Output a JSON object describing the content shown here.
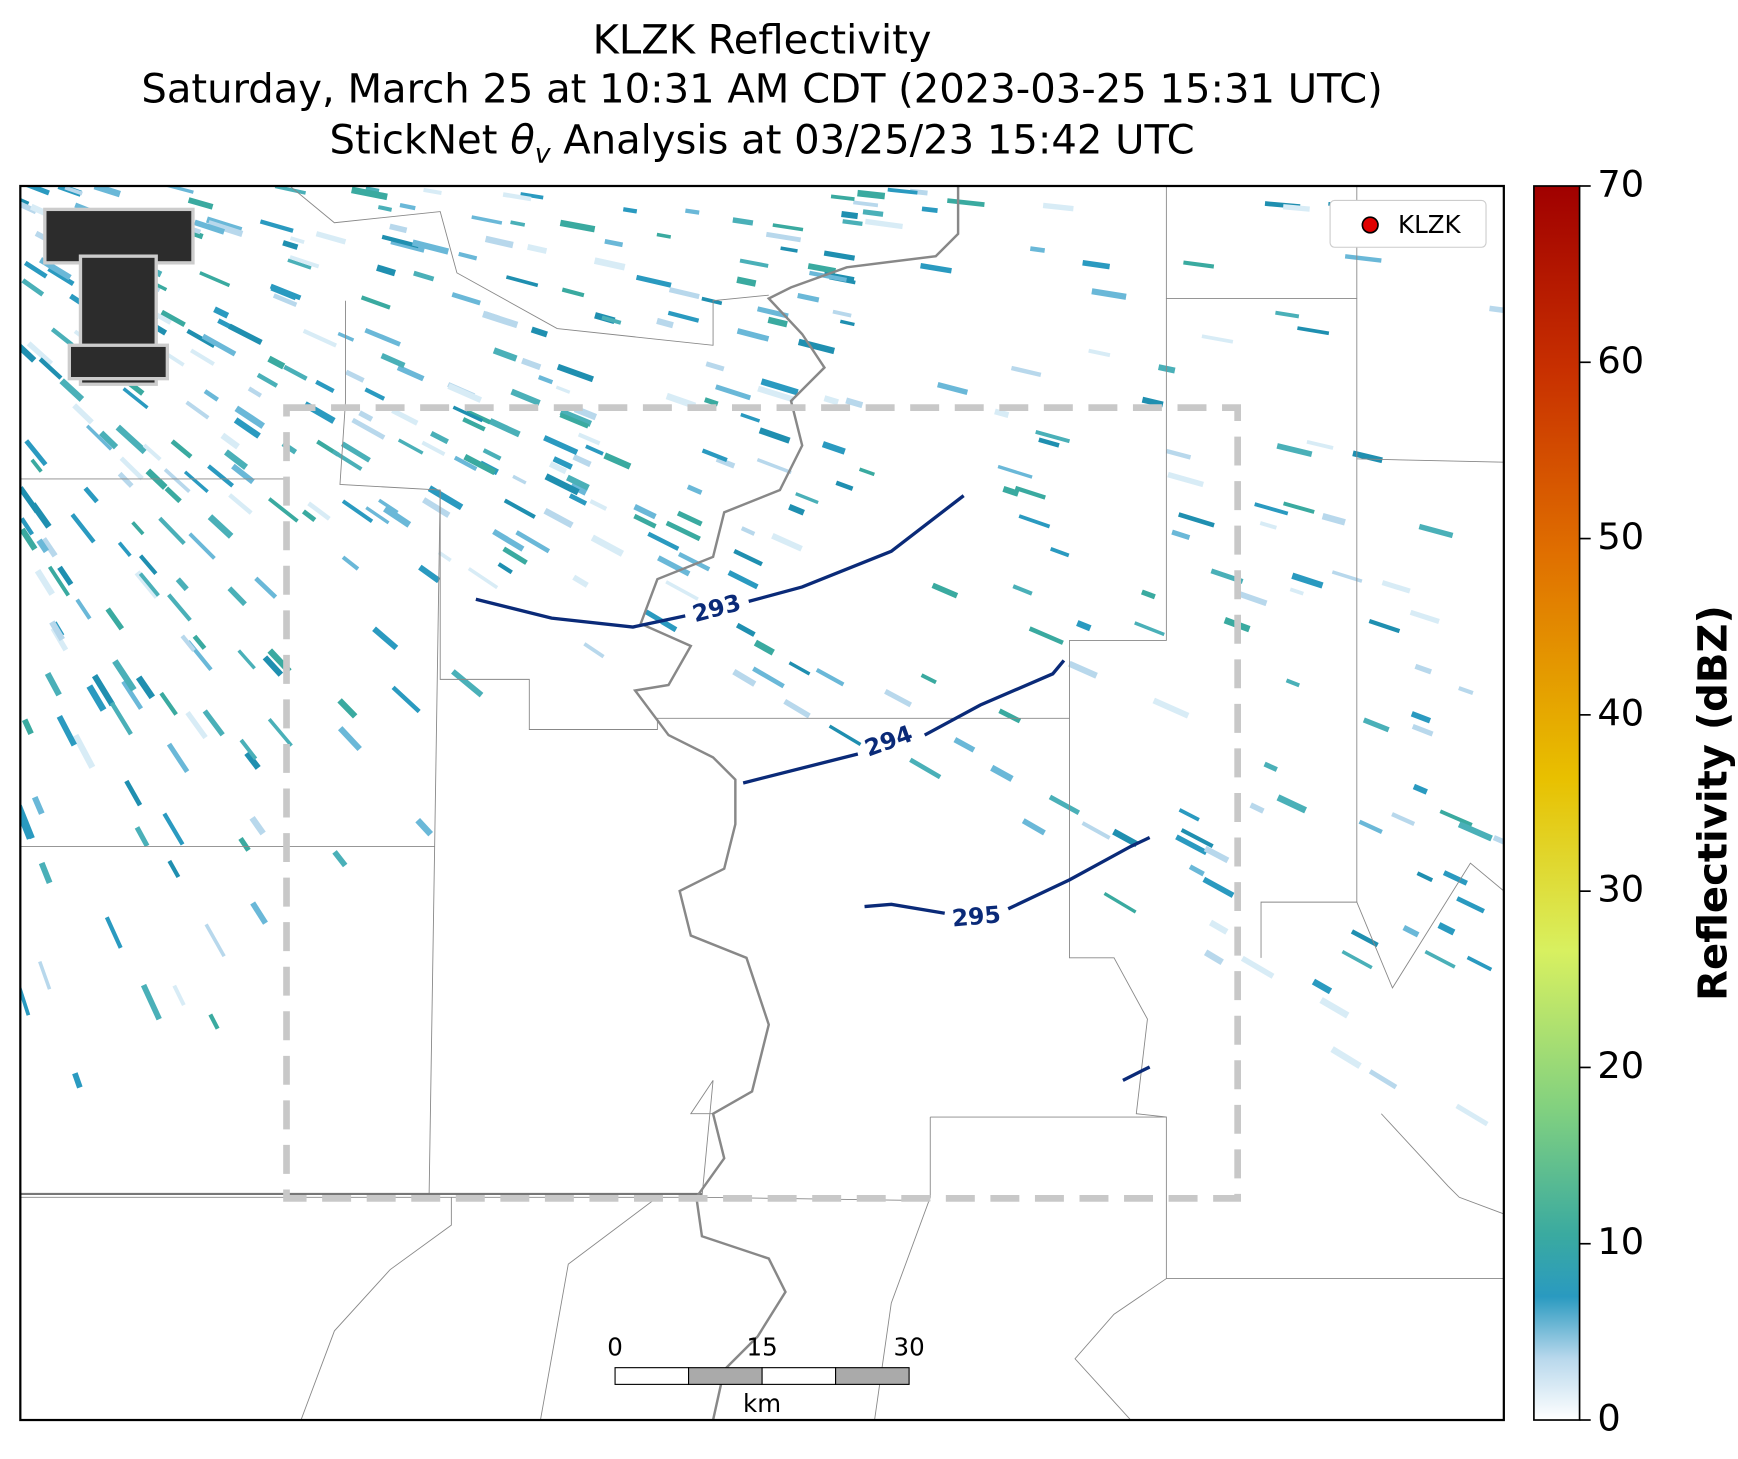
{
  "header": {
    "title": "KLZK Reflectivity",
    "subtitle": "Saturday, March 25 at 10:31 AM CDT (2023-03-25 15:31 UTC)",
    "analysis": {
      "prefix": "StickNet ",
      "symbol": "θ",
      "subscript": "v",
      "suffix": " Analysis at 03/25/23 15:42 UTC"
    }
  },
  "legend": {
    "label": "KLZK",
    "color": "#e00000"
  },
  "contours": [
    {
      "label": "293"
    },
    {
      "label": "294"
    },
    {
      "label": "295"
    }
  ],
  "scale_bar": {
    "ticks": [
      "0",
      "15",
      "30"
    ],
    "unit": "km"
  },
  "colorbar": {
    "label": "Reflectivity (dBZ)",
    "lim": [
      0,
      70
    ],
    "ticks": [
      0,
      10,
      20,
      30,
      40,
      50,
      60,
      70
    ]
  }
}
